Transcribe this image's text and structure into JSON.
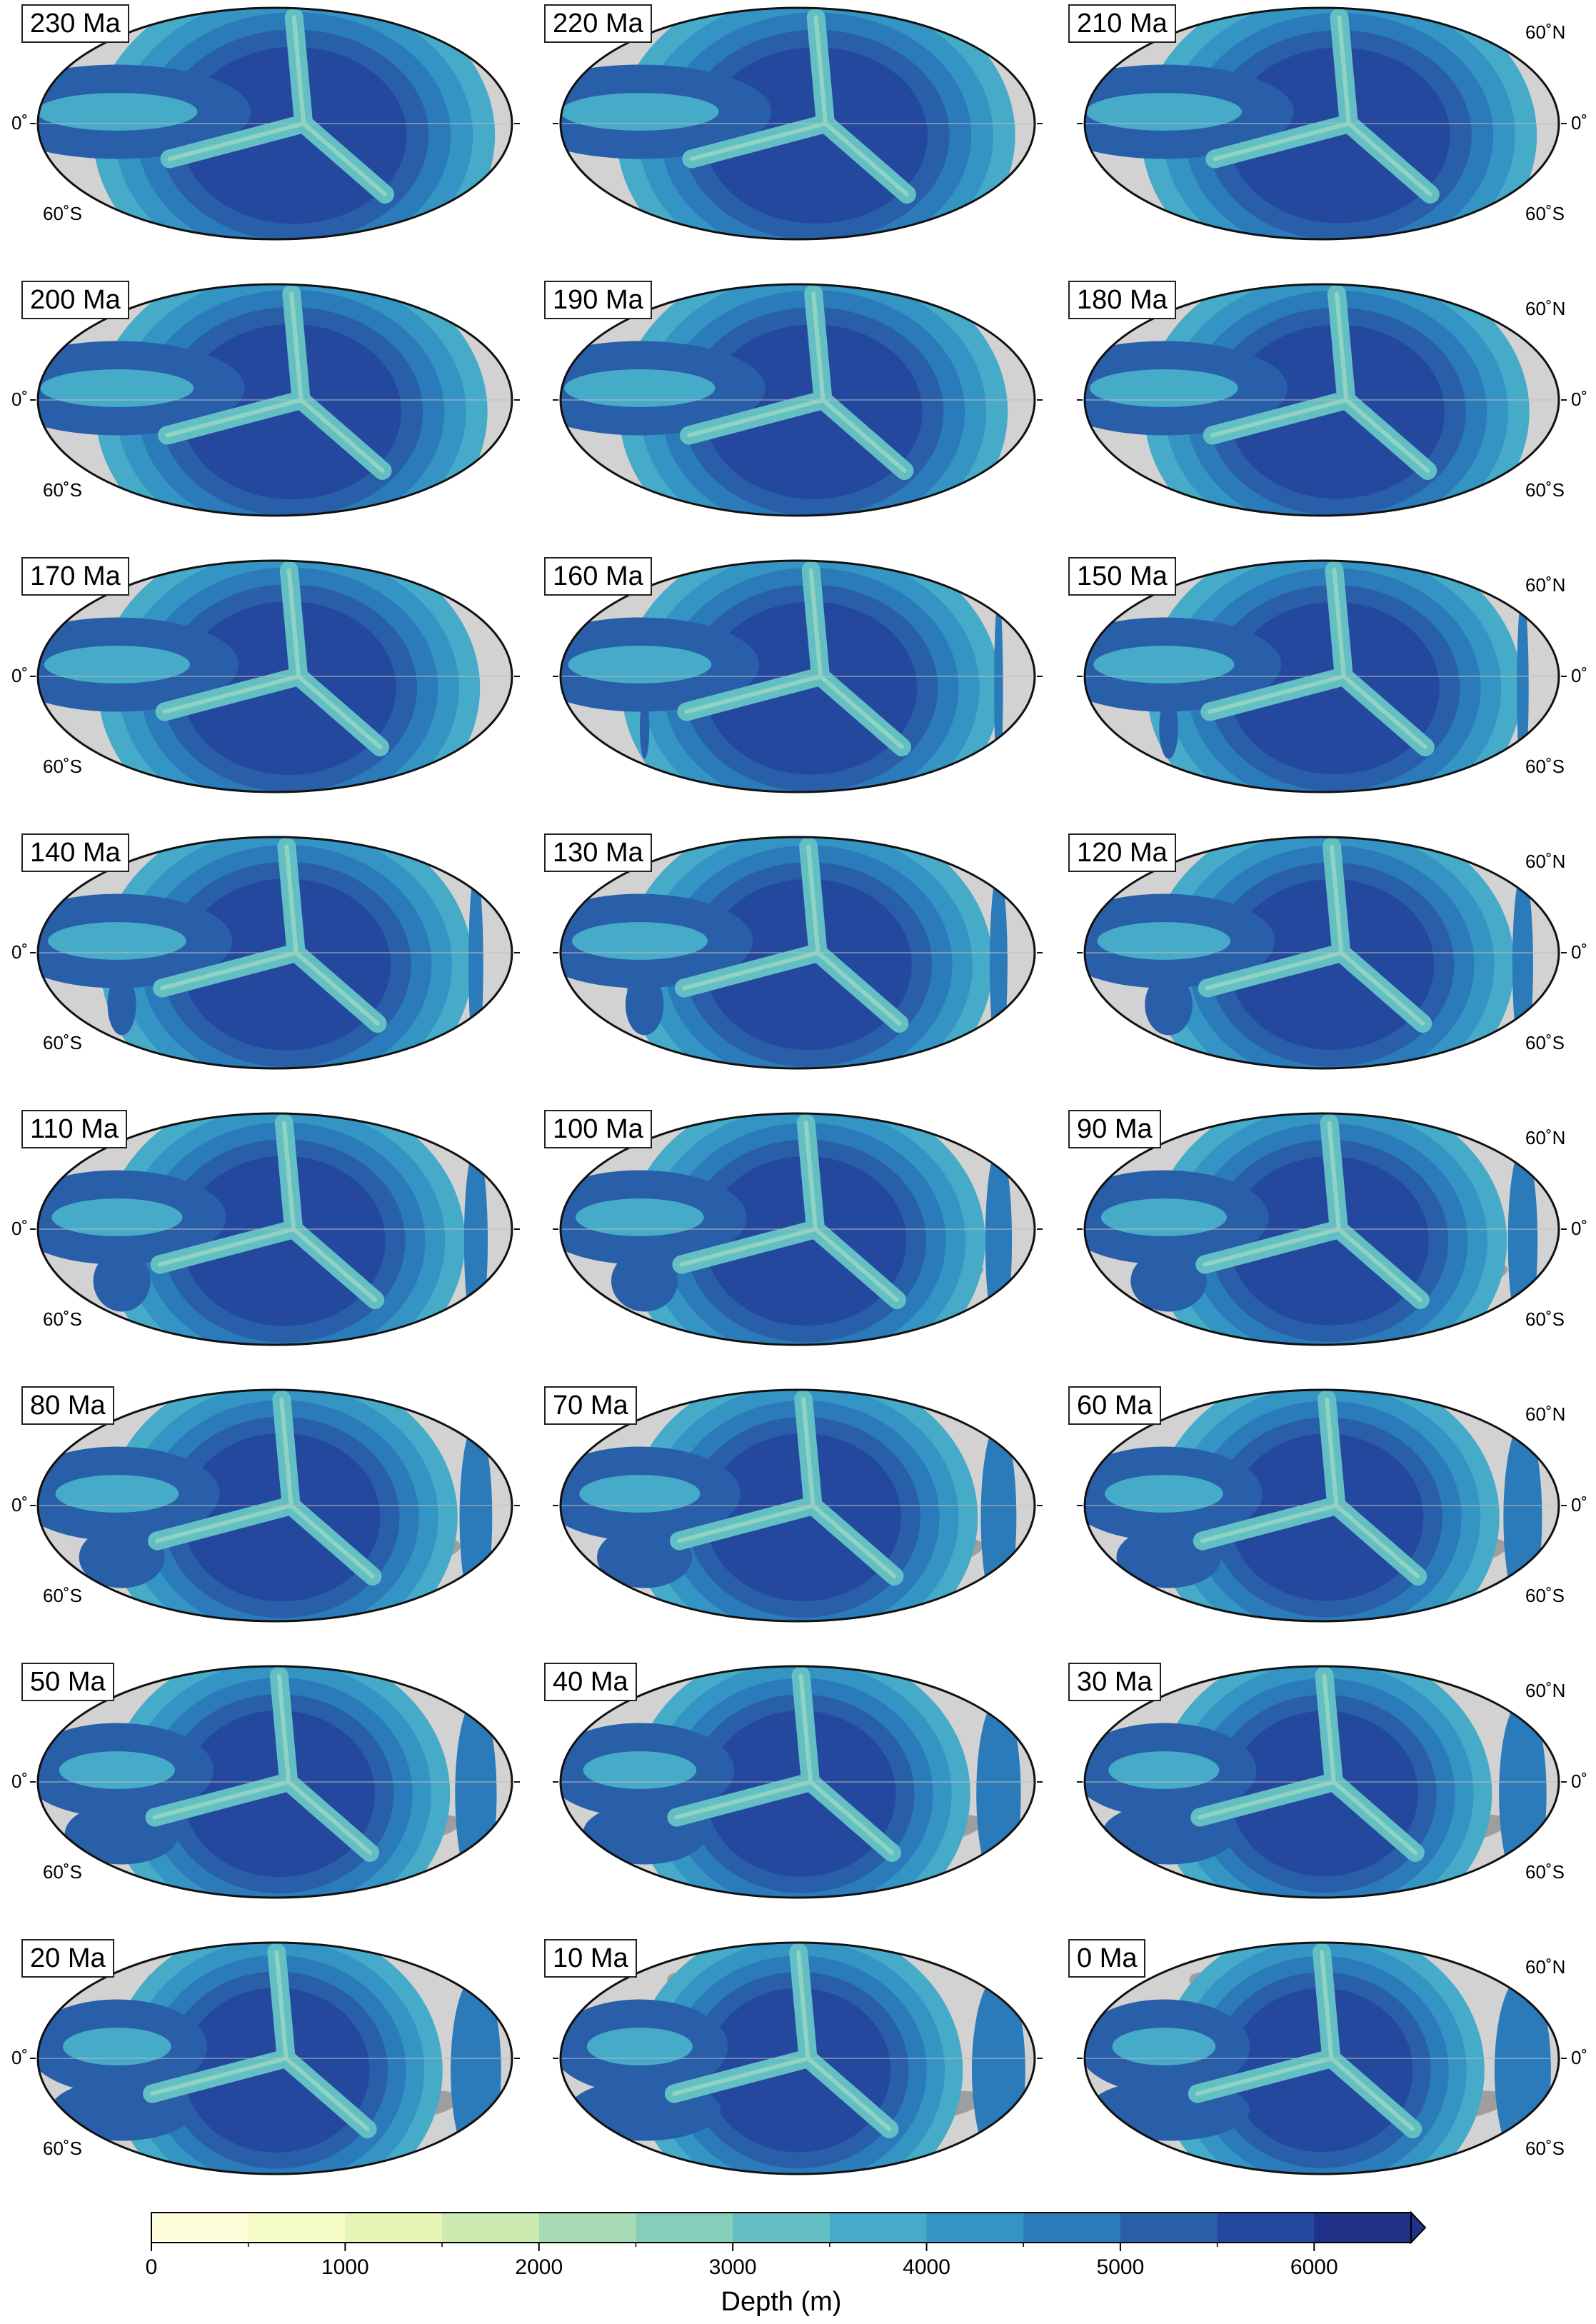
{
  "panels": [
    {
      "age": "230 Ma",
      "lat_labels": {
        "equator": "0˚",
        "south": "60˚S"
      }
    },
    {
      "age": "220 Ma",
      "lat_labels": {}
    },
    {
      "age": "210 Ma",
      "lat_labels": {
        "north": "60˚N",
        "equator": "0˚",
        "south": "60˚S"
      }
    },
    {
      "age": "200 Ma",
      "lat_labels": {
        "equator": "0˚",
        "south": "60˚S"
      }
    },
    {
      "age": "190 Ma",
      "lat_labels": {}
    },
    {
      "age": "180 Ma",
      "lat_labels": {
        "north": "60˚N",
        "equator": "0˚",
        "south": "60˚S"
      }
    },
    {
      "age": "170 Ma",
      "lat_labels": {
        "equator": "0˚",
        "south": "60˚S"
      }
    },
    {
      "age": "160 Ma",
      "lat_labels": {}
    },
    {
      "age": "150 Ma",
      "lat_labels": {
        "north": "60˚N",
        "equator": "0˚",
        "south": "60˚S"
      }
    },
    {
      "age": "140 Ma",
      "lat_labels": {
        "equator": "0˚",
        "south": "60˚S"
      }
    },
    {
      "age": "130 Ma",
      "lat_labels": {}
    },
    {
      "age": "120 Ma",
      "lat_labels": {
        "north": "60˚N",
        "equator": "0˚",
        "south": "60˚S"
      }
    },
    {
      "age": "110 Ma",
      "lat_labels": {
        "equator": "0˚",
        "south": "60˚S"
      }
    },
    {
      "age": "100 Ma",
      "lat_labels": {}
    },
    {
      "age": "90 Ma",
      "lat_labels": {
        "north": "60˚N",
        "equator": "0˚",
        "south": "60˚S"
      }
    },
    {
      "age": "80 Ma",
      "lat_labels": {
        "equator": "0˚",
        "south": "60˚S"
      }
    },
    {
      "age": "70 Ma",
      "lat_labels": {}
    },
    {
      "age": "60 Ma",
      "lat_labels": {
        "north": "60˚N",
        "equator": "0˚",
        "south": "60˚S"
      }
    },
    {
      "age": "50 Ma",
      "lat_labels": {
        "equator": "0˚",
        "south": "60˚S"
      }
    },
    {
      "age": "40 Ma",
      "lat_labels": {}
    },
    {
      "age": "30 Ma",
      "lat_labels": {
        "north": "60˚N",
        "equator": "0˚",
        "south": "60˚S"
      }
    },
    {
      "age": "20 Ma",
      "lat_labels": {
        "equator": "0˚",
        "south": "60˚S"
      }
    },
    {
      "age": "10 Ma",
      "lat_labels": {}
    },
    {
      "age": "0 Ma",
      "lat_labels": {
        "north": "60˚N",
        "equator": "0˚",
        "south": "60˚S"
      }
    }
  ],
  "colorbar": {
    "title": "Depth (m)",
    "min": 0,
    "max": 6500,
    "step": 500,
    "ticks": [
      0,
      1000,
      2000,
      3000,
      4000,
      5000,
      6000
    ],
    "tick_labels": [
      "0",
      "1000",
      "2000",
      "3000",
      "4000",
      "5000",
      "6000"
    ],
    "colors": [
      "#fffedb",
      "#f5fcc6",
      "#e6f5b5",
      "#cdebb0",
      "#a7dbb6",
      "#86ceba",
      "#64bfc4",
      "#46abc8",
      "#3494c4",
      "#2b7ab9",
      "#285fa8",
      "#24489d",
      "#1f3287"
    ],
    "extend": "max"
  },
  "colors": {
    "land": "#d2d2d2",
    "shelf": "#9e9e9e",
    "ridge": "#8ed4c1",
    "border": "#111111"
  }
}
